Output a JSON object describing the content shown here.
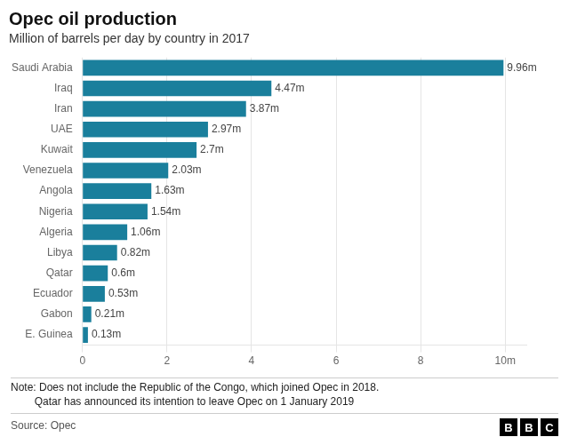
{
  "chart_data": {
    "type": "bar",
    "orientation": "horizontal",
    "title": "Opec oil production",
    "subtitle": "Million of barrels per day by country in 2017",
    "categories": [
      "Saudi Arabia",
      "Iraq",
      "Iran",
      "UAE",
      "Kuwait",
      "Venezuela",
      "Angola",
      "Nigeria",
      "Algeria",
      "Libya",
      "Qatar",
      "Ecuador",
      "Gabon",
      "E. Guinea"
    ],
    "values": [
      9.96,
      4.47,
      3.87,
      2.97,
      2.7,
      2.03,
      1.63,
      1.54,
      1.06,
      0.82,
      0.6,
      0.53,
      0.21,
      0.13
    ],
    "value_labels": [
      "9.96m",
      "4.47m",
      "3.87m",
      "2.97m",
      "2.7m",
      "2.03m",
      "1.63m",
      "1.54m",
      "1.06m",
      "0.82m",
      "0.6m",
      "0.53m",
      "0.21m",
      "0.13m"
    ],
    "data_labels": true,
    "color": "#1a7f9c",
    "xlim": [
      0,
      10.5
    ],
    "xticks": [
      0,
      2,
      4,
      6,
      8,
      {
        "value": 10,
        "label": "10m"
      }
    ],
    "grid": true,
    "annotations": [
      "Note: Does not include the Republic of the Congo, which joined Opec in 2018.",
      "        Qatar has announced its intention to leave Opec on 1 January 2019",
      "Source: Opec",
      "BBC"
    ]
  }
}
